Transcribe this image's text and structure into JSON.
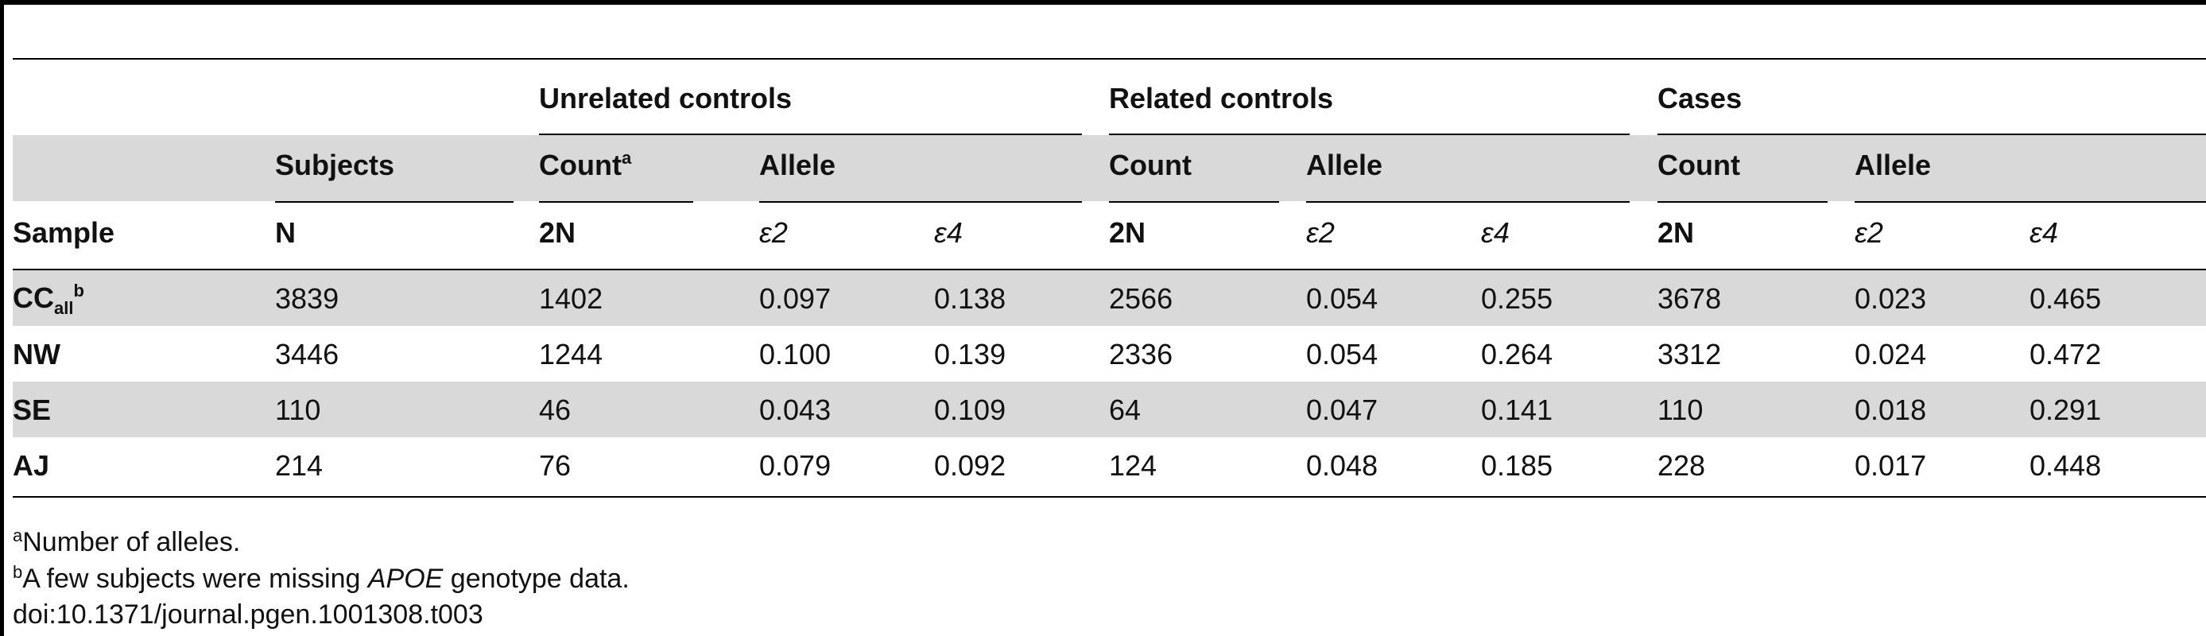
{
  "table": {
    "groups": [
      "Unrelated controls",
      "Related controls",
      "Cases"
    ],
    "subheaders": {
      "subjects": "Subjects",
      "count_unrelated": "Count",
      "count_unrelated_sup": "a",
      "allele": "Allele",
      "count": "Count"
    },
    "col_headers": {
      "sample": "Sample",
      "n": "N",
      "two_n": "2N",
      "e2": "ε2",
      "e4": "ε4"
    },
    "rows": [
      {
        "sample": "CC",
        "sample_sub": "all",
        "sample_sup": "b",
        "n": "3839",
        "u_2n": "1402",
        "u_e2": "0.097",
        "u_e4": "0.138",
        "r_2n": "2566",
        "r_e2": "0.054",
        "r_e4": "0.255",
        "c_2n": "3678",
        "c_e2": "0.023",
        "c_e4": "0.465"
      },
      {
        "sample": "NW",
        "n": "3446",
        "u_2n": "1244",
        "u_e2": "0.100",
        "u_e4": "0.139",
        "r_2n": "2336",
        "r_e2": "0.054",
        "r_e4": "0.264",
        "c_2n": "3312",
        "c_e2": "0.024",
        "c_e4": "0.472"
      },
      {
        "sample": "SE",
        "n": "110",
        "u_2n": "46",
        "u_e2": "0.043",
        "u_e4": "0.109",
        "r_2n": "64",
        "r_e2": "0.047",
        "r_e4": "0.141",
        "c_2n": "110",
        "c_e2": "0.018",
        "c_e4": "0.291"
      },
      {
        "sample": "AJ",
        "n": "214",
        "u_2n": "76",
        "u_e2": "0.079",
        "u_e4": "0.092",
        "r_2n": "124",
        "r_e2": "0.048",
        "r_e4": "0.185",
        "c_2n": "228",
        "c_e2": "0.017",
        "c_e4": "0.448"
      }
    ]
  },
  "footnotes": {
    "a_mark": "a",
    "a_text": "Number of alleles.",
    "b_mark": "b",
    "b_text_before": "A few subjects were missing ",
    "b_text_italic": "APOE",
    "b_text_after": " genotype data.",
    "doi": "doi:10.1371/journal.pgen.1001308.t003"
  }
}
